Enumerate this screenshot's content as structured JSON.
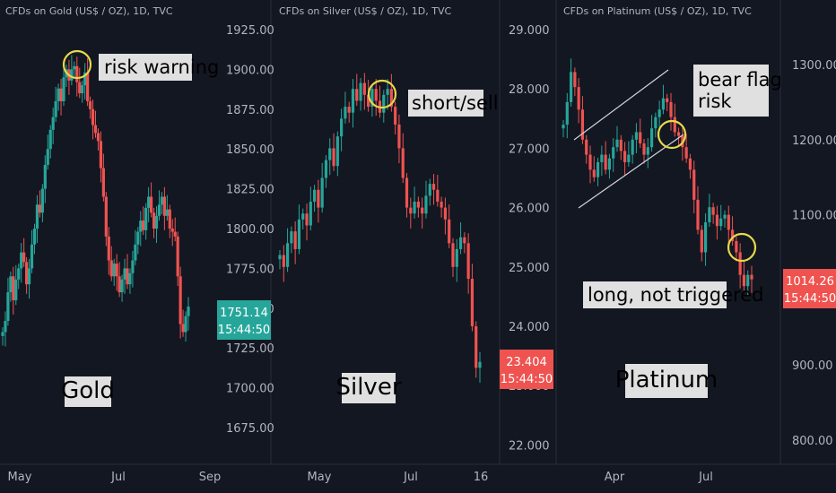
{
  "colors": {
    "background": "#131722",
    "up": "#26a69a",
    "down": "#ef5350",
    "highlight_circle": "#e6d84a",
    "annotation_box": "#e0e0e0",
    "divider": "#2a2e39"
  },
  "chart_data": [
    {
      "type": "candlestick",
      "header": "CFDs on Gold (US$ / OZ), 1D, TVC",
      "y_ticks": [
        "1925.00",
        "1900.00",
        "1875.00",
        "1850.00",
        "1825.00",
        "1800.00",
        "1775.00",
        "1750.00",
        "1725.00",
        "1700.00",
        "1675.00"
      ],
      "ylim": [
        1665,
        1935
      ],
      "x_ticks": [
        "May",
        "Jul",
        "Sep"
      ],
      "price_badge": {
        "value": "1751.14",
        "time": "15:44:50",
        "color": "#26a69a"
      },
      "label": "Gold",
      "annotations": [
        "risk warning"
      ],
      "closes": [
        1735,
        1742,
        1760,
        1770,
        1755,
        1768,
        1775,
        1785,
        1779,
        1765,
        1775,
        1790,
        1800,
        1815,
        1810,
        1825,
        1840,
        1850,
        1862,
        1870,
        1880,
        1888,
        1880,
        1895,
        1900,
        1893,
        1900,
        1902,
        1892,
        1885,
        1890,
        1898,
        1880,
        1875,
        1865,
        1860,
        1855,
        1838,
        1820,
        1795,
        1780,
        1770,
        1778,
        1770,
        1760,
        1768,
        1775,
        1765,
        1772,
        1780,
        1790,
        1798,
        1805,
        1799,
        1813,
        1820,
        1810,
        1800,
        1808,
        1815,
        1820,
        1808,
        1812,
        1800,
        1798,
        1795,
        1770,
        1740,
        1735,
        1745,
        1751
      ],
      "circle_index": 28
    },
    {
      "type": "candlestick",
      "header": "CFDs on Silver (US$ / OZ), 1D, TVC",
      "y_ticks": [
        "29.000",
        "28.000",
        "27.000",
        "26.000",
        "25.000",
        "24.000",
        "23.000",
        "22.000"
      ],
      "ylim": [
        21.6,
        29.3
      ],
      "x_ticks": [
        "May",
        "Jul",
        "16"
      ],
      "price_badge": {
        "value": "23.404",
        "time": "15:44:50",
        "color": "#ef5350"
      },
      "label": "Silver",
      "annotations": [
        "short/sell"
      ],
      "closes": [
        25.2,
        25.0,
        25.4,
        25.6,
        25.3,
        25.8,
        25.9,
        25.7,
        26.1,
        26.3,
        26.0,
        26.5,
        26.8,
        27.0,
        26.7,
        27.2,
        27.5,
        27.7,
        27.6,
        28.0,
        27.8,
        28.1,
        27.9,
        27.7,
        28.0,
        27.8,
        27.6,
        27.9,
        28.0,
        27.7,
        27.4,
        27.0,
        26.5,
        26.0,
        25.9,
        26.1,
        26.0,
        25.9,
        26.2,
        26.4,
        26.3,
        26.1,
        26.0,
        25.8,
        25.4,
        25.0,
        25.3,
        25.5,
        25.4,
        24.8,
        24.0,
        23.3,
        23.4
      ],
      "circle_index": 26
    },
    {
      "type": "candlestick",
      "header": "CFDs on Platinum (US$ / OZ), 1D, TVC",
      "y_ticks": [
        "1300.00",
        "1200.00",
        "1100.00",
        "1000.00",
        "900.00",
        "800.00"
      ],
      "ylim": [
        780,
        1340
      ],
      "x_ticks": [
        "Apr",
        "Jul"
      ],
      "price_badge": {
        "value": "1014.26",
        "time": "15:44:50",
        "color": "#ef5350"
      },
      "label": "Platinum",
      "annotations": [
        "bear flag\nrisk",
        "long, not triggered"
      ],
      "closes": [
        1220,
        1250,
        1290,
        1270,
        1240,
        1200,
        1180,
        1160,
        1150,
        1170,
        1180,
        1160,
        1175,
        1190,
        1200,
        1185,
        1170,
        1180,
        1200,
        1210,
        1195,
        1180,
        1190,
        1215,
        1230,
        1240,
        1255,
        1250,
        1230,
        1210,
        1205,
        1190,
        1175,
        1160,
        1120,
        1080,
        1050,
        1090,
        1110,
        1100,
        1085,
        1095,
        1100,
        1080,
        1065,
        1050,
        1020,
        1005,
        1020,
        1014
      ],
      "circle_indices": [
        31,
        45
      ]
    }
  ]
}
